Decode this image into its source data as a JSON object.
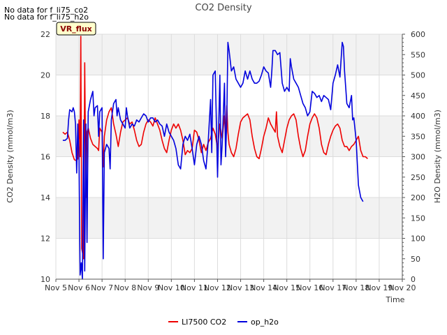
{
  "chart_data": {
    "type": "line",
    "title": "CO2 Density",
    "xlabel": "Time",
    "ylabel_left": "CO2 Density (mmol/m3)",
    "ylabel_right": "H2O Density (mmol/m3)",
    "notes": [
      "No data for f_li75_co2",
      "No data for f_li75_h2o"
    ],
    "badge": "VR_flux",
    "x_ticks": [
      "Nov 5",
      "Nov 6",
      "Nov 7",
      "Nov 8",
      "Nov 9",
      "Nov 10",
      "Nov 11",
      "Nov 12",
      "Nov 13",
      "Nov 14",
      "Nov 15",
      "Nov 16",
      "Nov 17",
      "Nov 18",
      "Nov 19",
      "Nov 20"
    ],
    "xlim": [
      5,
      20
    ],
    "ylim_left": [
      10,
      22
    ],
    "ylim_right": [
      0,
      600
    ],
    "left_ticks": [
      "10",
      "12",
      "14",
      "16",
      "18",
      "20",
      "22"
    ],
    "right_ticks": [
      "0",
      "50",
      "100",
      "150",
      "200",
      "250",
      "300",
      "350",
      "400",
      "450",
      "500",
      "550",
      "600"
    ],
    "legend": [
      "LI7500 CO2",
      "op_h2o"
    ],
    "series": [
      {
        "name": "LI7500 CO2",
        "axis": "left",
        "color": "#ee0000",
        "points": [
          [
            5.3,
            17.2
          ],
          [
            5.4,
            17.1
          ],
          [
            5.5,
            17.2
          ],
          [
            5.6,
            16.8
          ],
          [
            5.7,
            16.2
          ],
          [
            5.8,
            15.85
          ],
          [
            5.9,
            15.8
          ],
          [
            5.95,
            15.9
          ],
          [
            6.0,
            17.8
          ],
          [
            6.05,
            16.0
          ],
          [
            6.08,
            21.9
          ],
          [
            6.12,
            11.5
          ],
          [
            6.2,
            11.0
          ],
          [
            6.25,
            20.6
          ],
          [
            6.3,
            14.0
          ],
          [
            6.35,
            17.2
          ],
          [
            6.4,
            17.4
          ],
          [
            6.5,
            16.9
          ],
          [
            6.6,
            16.6
          ],
          [
            6.7,
            16.5
          ],
          [
            6.8,
            16.4
          ],
          [
            6.85,
            16.3
          ],
          [
            6.9,
            17.4
          ],
          [
            7.0,
            17.2
          ],
          [
            7.05,
            15.5
          ],
          [
            7.1,
            17.0
          ],
          [
            7.2,
            17.8
          ],
          [
            7.3,
            18.2
          ],
          [
            7.4,
            18.4
          ],
          [
            7.5,
            17.6
          ],
          [
            7.6,
            17.1
          ],
          [
            7.7,
            16.5
          ],
          [
            7.8,
            17.2
          ],
          [
            7.9,
            17.7
          ],
          [
            8.0,
            17.8
          ],
          [
            8.1,
            17.9
          ],
          [
            8.2,
            17.6
          ],
          [
            8.3,
            17.7
          ],
          [
            8.4,
            17.3
          ],
          [
            8.5,
            16.8
          ],
          [
            8.6,
            16.5
          ],
          [
            8.7,
            16.6
          ],
          [
            8.8,
            17.2
          ],
          [
            8.9,
            17.6
          ],
          [
            9.0,
            17.8
          ],
          [
            9.1,
            17.7
          ],
          [
            9.2,
            17.5
          ],
          [
            9.3,
            17.9
          ],
          [
            9.4,
            17.6
          ],
          [
            9.5,
            17.3
          ],
          [
            9.6,
            16.8
          ],
          [
            9.7,
            16.4
          ],
          [
            9.8,
            16.2
          ],
          [
            9.9,
            16.8
          ],
          [
            10.0,
            17.3
          ],
          [
            10.1,
            17.6
          ],
          [
            10.2,
            17.4
          ],
          [
            10.3,
            17.6
          ],
          [
            10.4,
            17.3
          ],
          [
            10.5,
            16.8
          ],
          [
            10.6,
            16.1
          ],
          [
            10.7,
            16.3
          ],
          [
            10.8,
            16.2
          ],
          [
            10.9,
            16.4
          ],
          [
            11.0,
            17.3
          ],
          [
            11.1,
            17.2
          ],
          [
            11.2,
            16.8
          ],
          [
            11.3,
            16.2
          ],
          [
            11.4,
            16.6
          ],
          [
            11.5,
            16.3
          ],
          [
            11.6,
            16.7
          ],
          [
            11.7,
            16.9
          ],
          [
            11.8,
            17.4
          ],
          [
            11.9,
            17.1
          ],
          [
            12.0,
            16.4
          ],
          [
            12.1,
            17.6
          ],
          [
            12.2,
            16.9
          ],
          [
            12.3,
            18.0
          ],
          [
            12.35,
            16.9
          ],
          [
            12.4,
            18.5
          ],
          [
            12.45,
            17.2
          ],
          [
            12.5,
            16.6
          ],
          [
            12.6,
            16.2
          ],
          [
            12.7,
            16.0
          ],
          [
            12.8,
            16.4
          ],
          [
            12.9,
            17.1
          ],
          [
            13.0,
            17.7
          ],
          [
            13.1,
            17.9
          ],
          [
            13.2,
            18.0
          ],
          [
            13.3,
            18.1
          ],
          [
            13.4,
            17.8
          ],
          [
            13.5,
            17.0
          ],
          [
            13.6,
            16.4
          ],
          [
            13.7,
            16.0
          ],
          [
            13.8,
            15.9
          ],
          [
            13.9,
            16.4
          ],
          [
            14.0,
            17.0
          ],
          [
            14.1,
            17.4
          ],
          [
            14.2,
            17.9
          ],
          [
            14.3,
            17.6
          ],
          [
            14.4,
            17.4
          ],
          [
            14.5,
            17.2
          ],
          [
            14.55,
            18.2
          ],
          [
            14.6,
            17.0
          ],
          [
            14.7,
            16.5
          ],
          [
            14.8,
            16.2
          ],
          [
            14.9,
            16.8
          ],
          [
            15.0,
            17.4
          ],
          [
            15.1,
            17.8
          ],
          [
            15.2,
            18.0
          ],
          [
            15.3,
            18.1
          ],
          [
            15.4,
            17.8
          ],
          [
            15.5,
            17.0
          ],
          [
            15.6,
            16.4
          ],
          [
            15.7,
            16.0
          ],
          [
            15.8,
            16.3
          ],
          [
            15.9,
            17.0
          ],
          [
            16.0,
            17.6
          ],
          [
            16.1,
            17.9
          ],
          [
            16.2,
            18.1
          ],
          [
            16.3,
            17.9
          ],
          [
            16.4,
            17.4
          ],
          [
            16.5,
            16.6
          ],
          [
            16.6,
            16.2
          ],
          [
            16.7,
            16.1
          ],
          [
            16.8,
            16.6
          ],
          [
            16.9,
            17.0
          ],
          [
            17.0,
            17.3
          ],
          [
            17.1,
            17.5
          ],
          [
            17.2,
            17.6
          ],
          [
            17.3,
            17.4
          ],
          [
            17.4,
            16.8
          ],
          [
            17.5,
            16.5
          ],
          [
            17.6,
            16.5
          ],
          [
            17.7,
            16.3
          ],
          [
            17.8,
            16.5
          ],
          [
            17.9,
            16.6
          ],
          [
            18.0,
            16.8
          ],
          [
            18.1,
            17.0
          ],
          [
            18.2,
            16.3
          ],
          [
            18.3,
            16.0
          ],
          [
            18.4,
            16.0
          ],
          [
            18.5,
            15.9
          ]
        ]
      },
      {
        "name": "op_h2o",
        "axis": "right",
        "color": "#0000dd",
        "points": [
          [
            5.3,
            340
          ],
          [
            5.4,
            340
          ],
          [
            5.5,
            345
          ],
          [
            5.55,
            390
          ],
          [
            5.6,
            415
          ],
          [
            5.7,
            410
          ],
          [
            5.75,
            420
          ],
          [
            5.8,
            410
          ],
          [
            5.85,
            380
          ],
          [
            5.9,
            260
          ],
          [
            5.95,
            380
          ],
          [
            6.0,
            300
          ],
          [
            6.05,
            10
          ],
          [
            6.1,
            40
          ],
          [
            6.15,
            0
          ],
          [
            6.2,
            390
          ],
          [
            6.25,
            20
          ],
          [
            6.3,
            380
          ],
          [
            6.35,
            90
          ],
          [
            6.4,
            410
          ],
          [
            6.5,
            440
          ],
          [
            6.6,
            460
          ],
          [
            6.65,
            400
          ],
          [
            6.7,
            420
          ],
          [
            6.8,
            425
          ],
          [
            6.85,
            350
          ],
          [
            6.9,
            410
          ],
          [
            7.0,
            420
          ],
          [
            7.05,
            50
          ],
          [
            7.1,
            310
          ],
          [
            7.2,
            330
          ],
          [
            7.3,
            320
          ],
          [
            7.35,
            270
          ],
          [
            7.4,
            390
          ],
          [
            7.5,
            430
          ],
          [
            7.6,
            440
          ],
          [
            7.65,
            400
          ],
          [
            7.7,
            420
          ],
          [
            7.8,
            390
          ],
          [
            7.9,
            380
          ],
          [
            8.0,
            370
          ],
          [
            8.05,
            420
          ],
          [
            8.1,
            400
          ],
          [
            8.2,
            370
          ],
          [
            8.3,
            380
          ],
          [
            8.4,
            375
          ],
          [
            8.5,
            390
          ],
          [
            8.6,
            385
          ],
          [
            8.7,
            395
          ],
          [
            8.8,
            405
          ],
          [
            8.9,
            400
          ],
          [
            9.0,
            385
          ],
          [
            9.1,
            395
          ],
          [
            9.2,
            395
          ],
          [
            9.3,
            385
          ],
          [
            9.4,
            390
          ],
          [
            9.5,
            380
          ],
          [
            9.6,
            375
          ],
          [
            9.7,
            350
          ],
          [
            9.8,
            380
          ],
          [
            9.9,
            360
          ],
          [
            10.0,
            350
          ],
          [
            10.1,
            340
          ],
          [
            10.2,
            320
          ],
          [
            10.3,
            280
          ],
          [
            10.4,
            270
          ],
          [
            10.5,
            330
          ],
          [
            10.6,
            350
          ],
          [
            10.7,
            340
          ],
          [
            10.8,
            355
          ],
          [
            10.9,
            320
          ],
          [
            11.0,
            280
          ],
          [
            11.1,
            330
          ],
          [
            11.2,
            350
          ],
          [
            11.3,
            330
          ],
          [
            11.4,
            290
          ],
          [
            11.5,
            270
          ],
          [
            11.6,
            340
          ],
          [
            11.7,
            440
          ],
          [
            11.75,
            310
          ],
          [
            11.8,
            500
          ],
          [
            11.9,
            510
          ],
          [
            12.0,
            250
          ],
          [
            12.1,
            500
          ],
          [
            12.15,
            280
          ],
          [
            12.2,
            330
          ],
          [
            12.3,
            480
          ],
          [
            12.35,
            300
          ],
          [
            12.4,
            390
          ],
          [
            12.45,
            580
          ],
          [
            12.5,
            560
          ],
          [
            12.6,
            510
          ],
          [
            12.7,
            520
          ],
          [
            12.8,
            490
          ],
          [
            12.9,
            480
          ],
          [
            13.0,
            470
          ],
          [
            13.1,
            480
          ],
          [
            13.2,
            510
          ],
          [
            13.3,
            490
          ],
          [
            13.4,
            510
          ],
          [
            13.5,
            490
          ],
          [
            13.6,
            480
          ],
          [
            13.7,
            480
          ],
          [
            13.8,
            485
          ],
          [
            13.9,
            500
          ],
          [
            14.0,
            520
          ],
          [
            14.1,
            510
          ],
          [
            14.2,
            505
          ],
          [
            14.3,
            470
          ],
          [
            14.35,
            510
          ],
          [
            14.4,
            560
          ],
          [
            14.5,
            560
          ],
          [
            14.6,
            550
          ],
          [
            14.7,
            555
          ],
          [
            14.8,
            480
          ],
          [
            14.9,
            460
          ],
          [
            15.0,
            470
          ],
          [
            15.1,
            460
          ],
          [
            15.15,
            540
          ],
          [
            15.2,
            520
          ],
          [
            15.3,
            490
          ],
          [
            15.4,
            480
          ],
          [
            15.5,
            470
          ],
          [
            15.6,
            450
          ],
          [
            15.7,
            430
          ],
          [
            15.8,
            420
          ],
          [
            15.9,
            400
          ],
          [
            16.0,
            410
          ],
          [
            16.1,
            460
          ],
          [
            16.2,
            455
          ],
          [
            16.3,
            445
          ],
          [
            16.4,
            450
          ],
          [
            16.5,
            435
          ],
          [
            16.6,
            450
          ],
          [
            16.7,
            445
          ],
          [
            16.8,
            440
          ],
          [
            16.9,
            415
          ],
          [
            17.0,
            480
          ],
          [
            17.1,
            500
          ],
          [
            17.2,
            525
          ],
          [
            17.3,
            495
          ],
          [
            17.4,
            580
          ],
          [
            17.45,
            570
          ],
          [
            17.5,
            510
          ],
          [
            17.6,
            430
          ],
          [
            17.7,
            420
          ],
          [
            17.8,
            450
          ],
          [
            17.85,
            390
          ],
          [
            17.9,
            395
          ],
          [
            18.0,
            340
          ],
          [
            18.1,
            230
          ],
          [
            18.2,
            200
          ],
          [
            18.3,
            190
          ]
        ]
      }
    ]
  }
}
